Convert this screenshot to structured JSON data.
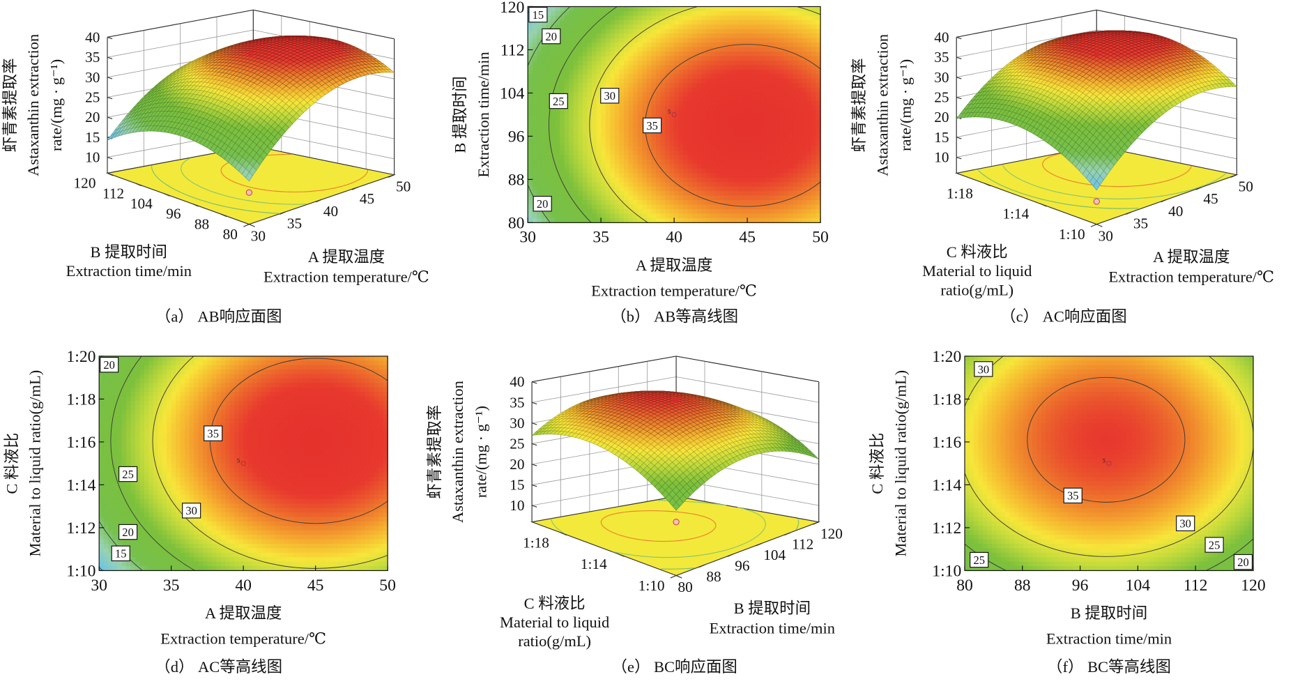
{
  "chart_data": [
    {
      "type": "surface",
      "caption": "（a） AB响应面图",
      "x_axis": {
        "label_lines": [
          "A 提取温度",
          "Extraction temperature/℃"
        ],
        "range": [
          30,
          50
        ],
        "ticks": [
          30,
          35,
          40,
          45,
          50
        ],
        "tick_labels": [
          "30",
          "35",
          "40",
          "45",
          "50"
        ]
      },
      "y_axis": {
        "label_lines": [
          "B 提取时间",
          "Extraction time/min"
        ],
        "range": [
          80,
          120
        ],
        "ticks": [
          80,
          88,
          96,
          104,
          112,
          120
        ],
        "tick_labels": [
          "80",
          "88",
          "96",
          "104",
          "112",
          "120"
        ]
      },
      "z_axis": {
        "label_lines": [
          "虾青素提取率",
          "Astaxanthin extraction",
          "rate/(mg · g⁻¹)"
        ],
        "range": [
          6,
          40
        ],
        "ticks": [
          10,
          15,
          20,
          25,
          30,
          35,
          40
        ],
        "tick_labels": [
          "10",
          "15",
          "20",
          "25",
          "30",
          "35",
          "40"
        ]
      },
      "floor_color": "#f3e93b",
      "grid": true
    },
    {
      "type": "heatmap",
      "caption": "（b） AB等高线图",
      "x_axis": {
        "label_lines": [
          "A 提取温度",
          "Extraction temperature/℃"
        ],
        "range": [
          30,
          50
        ],
        "ticks": [
          30,
          35,
          40,
          45,
          50
        ],
        "tick_labels": [
          "30",
          "35",
          "40",
          "45",
          "50"
        ]
      },
      "y_axis": {
        "label_lines": [
          "B 提取时间",
          "Extraction time/min"
        ],
        "range": [
          80,
          120
        ],
        "ticks": [
          80,
          88,
          96,
          104,
          112,
          120
        ],
        "tick_labels": [
          "80",
          "88",
          "96",
          "104",
          "112",
          "120"
        ]
      },
      "contour_levels": [
        15,
        20,
        25,
        30,
        35
      ],
      "contour_labels": [
        {
          "text": "15",
          "x": 30.7,
          "y": 118.5
        },
        {
          "text": "20",
          "x": 31.6,
          "y": 114.5
        },
        {
          "text": "25",
          "x": 32.1,
          "y": 102.5
        },
        {
          "text": "30",
          "x": 35.6,
          "y": 103.5
        },
        {
          "text": "35",
          "x": 38.5,
          "y": 98.0
        },
        {
          "text": "20",
          "x": 31.0,
          "y": 83.5
        }
      ],
      "design_point": {
        "label": "5",
        "x": 40,
        "y": 100
      },
      "colorscale": [
        "#2f6fd0",
        "#5ab4e6",
        "#72bf4a",
        "#f7e63a",
        "#ee7a2c",
        "#e8332e"
      ]
    },
    {
      "type": "surface",
      "caption": "（c） AC响应面图",
      "x_axis": {
        "label_lines": [
          "A 提取温度",
          "Extraction temperature/℃"
        ],
        "range": [
          30,
          50
        ],
        "ticks": [
          30,
          35,
          40,
          45,
          50
        ],
        "tick_labels": [
          "30",
          "35",
          "40",
          "45",
          "50"
        ]
      },
      "y_axis": {
        "label_lines": [
          "C 料液比",
          "Material to liquid",
          "ratio(g/mL)"
        ],
        "range": [
          10,
          20
        ],
        "ticks": [
          10,
          14,
          18
        ],
        "tick_labels": [
          "1:10",
          "1:14",
          "1:18"
        ]
      },
      "z_axis": {
        "label_lines": [
          "虾青素提取率",
          "Astaxanthin extraction",
          "rate/(mg · g⁻¹)"
        ],
        "range": [
          6,
          40
        ],
        "ticks": [
          10,
          15,
          20,
          25,
          30,
          35,
          40
        ],
        "tick_labels": [
          "10",
          "15",
          "20",
          "25",
          "30",
          "35",
          "40"
        ]
      },
      "floor_color": "#f3e93b",
      "grid": true
    },
    {
      "type": "heatmap",
      "caption": "（d） AC等高线图",
      "x_axis": {
        "label_lines": [
          "A 提取温度",
          "Extraction temperature/℃"
        ],
        "range": [
          30,
          50
        ],
        "ticks": [
          30,
          35,
          40,
          45,
          50
        ],
        "tick_labels": [
          "30",
          "35",
          "40",
          "45",
          "50"
        ]
      },
      "y_axis": {
        "label_lines": [
          "C 料液比",
          "Material to liquid ratio(g/mL)"
        ],
        "range": [
          10,
          20
        ],
        "ticks": [
          10,
          12,
          14,
          16,
          18,
          20
        ],
        "tick_labels": [
          "1:10",
          "1:12",
          "1:14",
          "1:16",
          "1:18",
          "1:20"
        ]
      },
      "contour_levels": [
        15,
        20,
        25,
        30,
        35
      ],
      "contour_labels": [
        {
          "text": "20",
          "x": 30.7,
          "y": 19.6
        },
        {
          "text": "35",
          "x": 37.9,
          "y": 16.4
        },
        {
          "text": "25",
          "x": 32.0,
          "y": 14.5
        },
        {
          "text": "30",
          "x": 36.4,
          "y": 12.8
        },
        {
          "text": "20",
          "x": 32.0,
          "y": 11.8
        },
        {
          "text": "15",
          "x": 31.5,
          "y": 10.8
        }
      ],
      "design_point": {
        "label": "5",
        "x": 40,
        "y": 15
      },
      "colorscale": [
        "#2f6fd0",
        "#5ab4e6",
        "#72bf4a",
        "#f7e63a",
        "#ee7a2c",
        "#e8332e"
      ]
    },
    {
      "type": "surface",
      "caption": "（e） BC响应面图",
      "x_axis": {
        "label_lines": [
          "B 提取时间",
          "Extraction time/min"
        ],
        "range": [
          80,
          120
        ],
        "ticks": [
          80,
          88,
          96,
          104,
          112,
          120
        ],
        "tick_labels": [
          "80",
          "88",
          "96",
          "104",
          "112",
          "120"
        ]
      },
      "y_axis": {
        "label_lines": [
          "C 料液比",
          "Material to liquid",
          "ratio(g/mL)"
        ],
        "range": [
          10,
          20
        ],
        "ticks": [
          10,
          14,
          18
        ],
        "tick_labels": [
          "1:10",
          "1:14",
          "1:18"
        ]
      },
      "z_axis": {
        "label_lines": [
          "虾青素提取率",
          "Astaxanthin extraction",
          "rate/(mg · g⁻¹)"
        ],
        "range": [
          6,
          40
        ],
        "ticks": [
          10,
          15,
          20,
          25,
          30,
          35,
          40
        ],
        "tick_labels": [
          "10",
          "15",
          "20",
          "25",
          "30",
          "35",
          "40"
        ]
      },
      "floor_color": "#f3e93b",
      "grid": true
    },
    {
      "type": "heatmap",
      "caption": "（f） BC等高线图",
      "x_axis": {
        "label_lines": [
          "B 提取时间",
          "Extraction time/min"
        ],
        "range": [
          80,
          120
        ],
        "ticks": [
          80,
          88,
          96,
          104,
          112,
          120
        ],
        "tick_labels": [
          "80",
          "88",
          "96",
          "104",
          "112",
          "120"
        ]
      },
      "y_axis": {
        "label_lines": [
          "C 料液比",
          "Material to liquid ratio(g/mL)"
        ],
        "range": [
          10,
          20
        ],
        "ticks": [
          10,
          12,
          14,
          16,
          18,
          20
        ],
        "tick_labels": [
          "1:10",
          "1:12",
          "1:14",
          "1:16",
          "1:18",
          "1:20"
        ]
      },
      "contour_levels": [
        20,
        25,
        30,
        35
      ],
      "contour_labels": [
        {
          "text": "30",
          "x": 82.6,
          "y": 19.4
        },
        {
          "text": "35",
          "x": 95.0,
          "y": 13.5
        },
        {
          "text": "30",
          "x": 110.6,
          "y": 12.2
        },
        {
          "text": "25",
          "x": 114.6,
          "y": 11.2
        },
        {
          "text": "20",
          "x": 118.6,
          "y": 10.4
        },
        {
          "text": "25",
          "x": 82.0,
          "y": 10.5
        }
      ],
      "design_point": {
        "label": "5",
        "x": 100,
        "y": 15
      },
      "colorscale": [
        "#2f6fd0",
        "#5ab4e6",
        "#72bf4a",
        "#f7e63a",
        "#ee7a2c",
        "#e8332e"
      ]
    }
  ]
}
